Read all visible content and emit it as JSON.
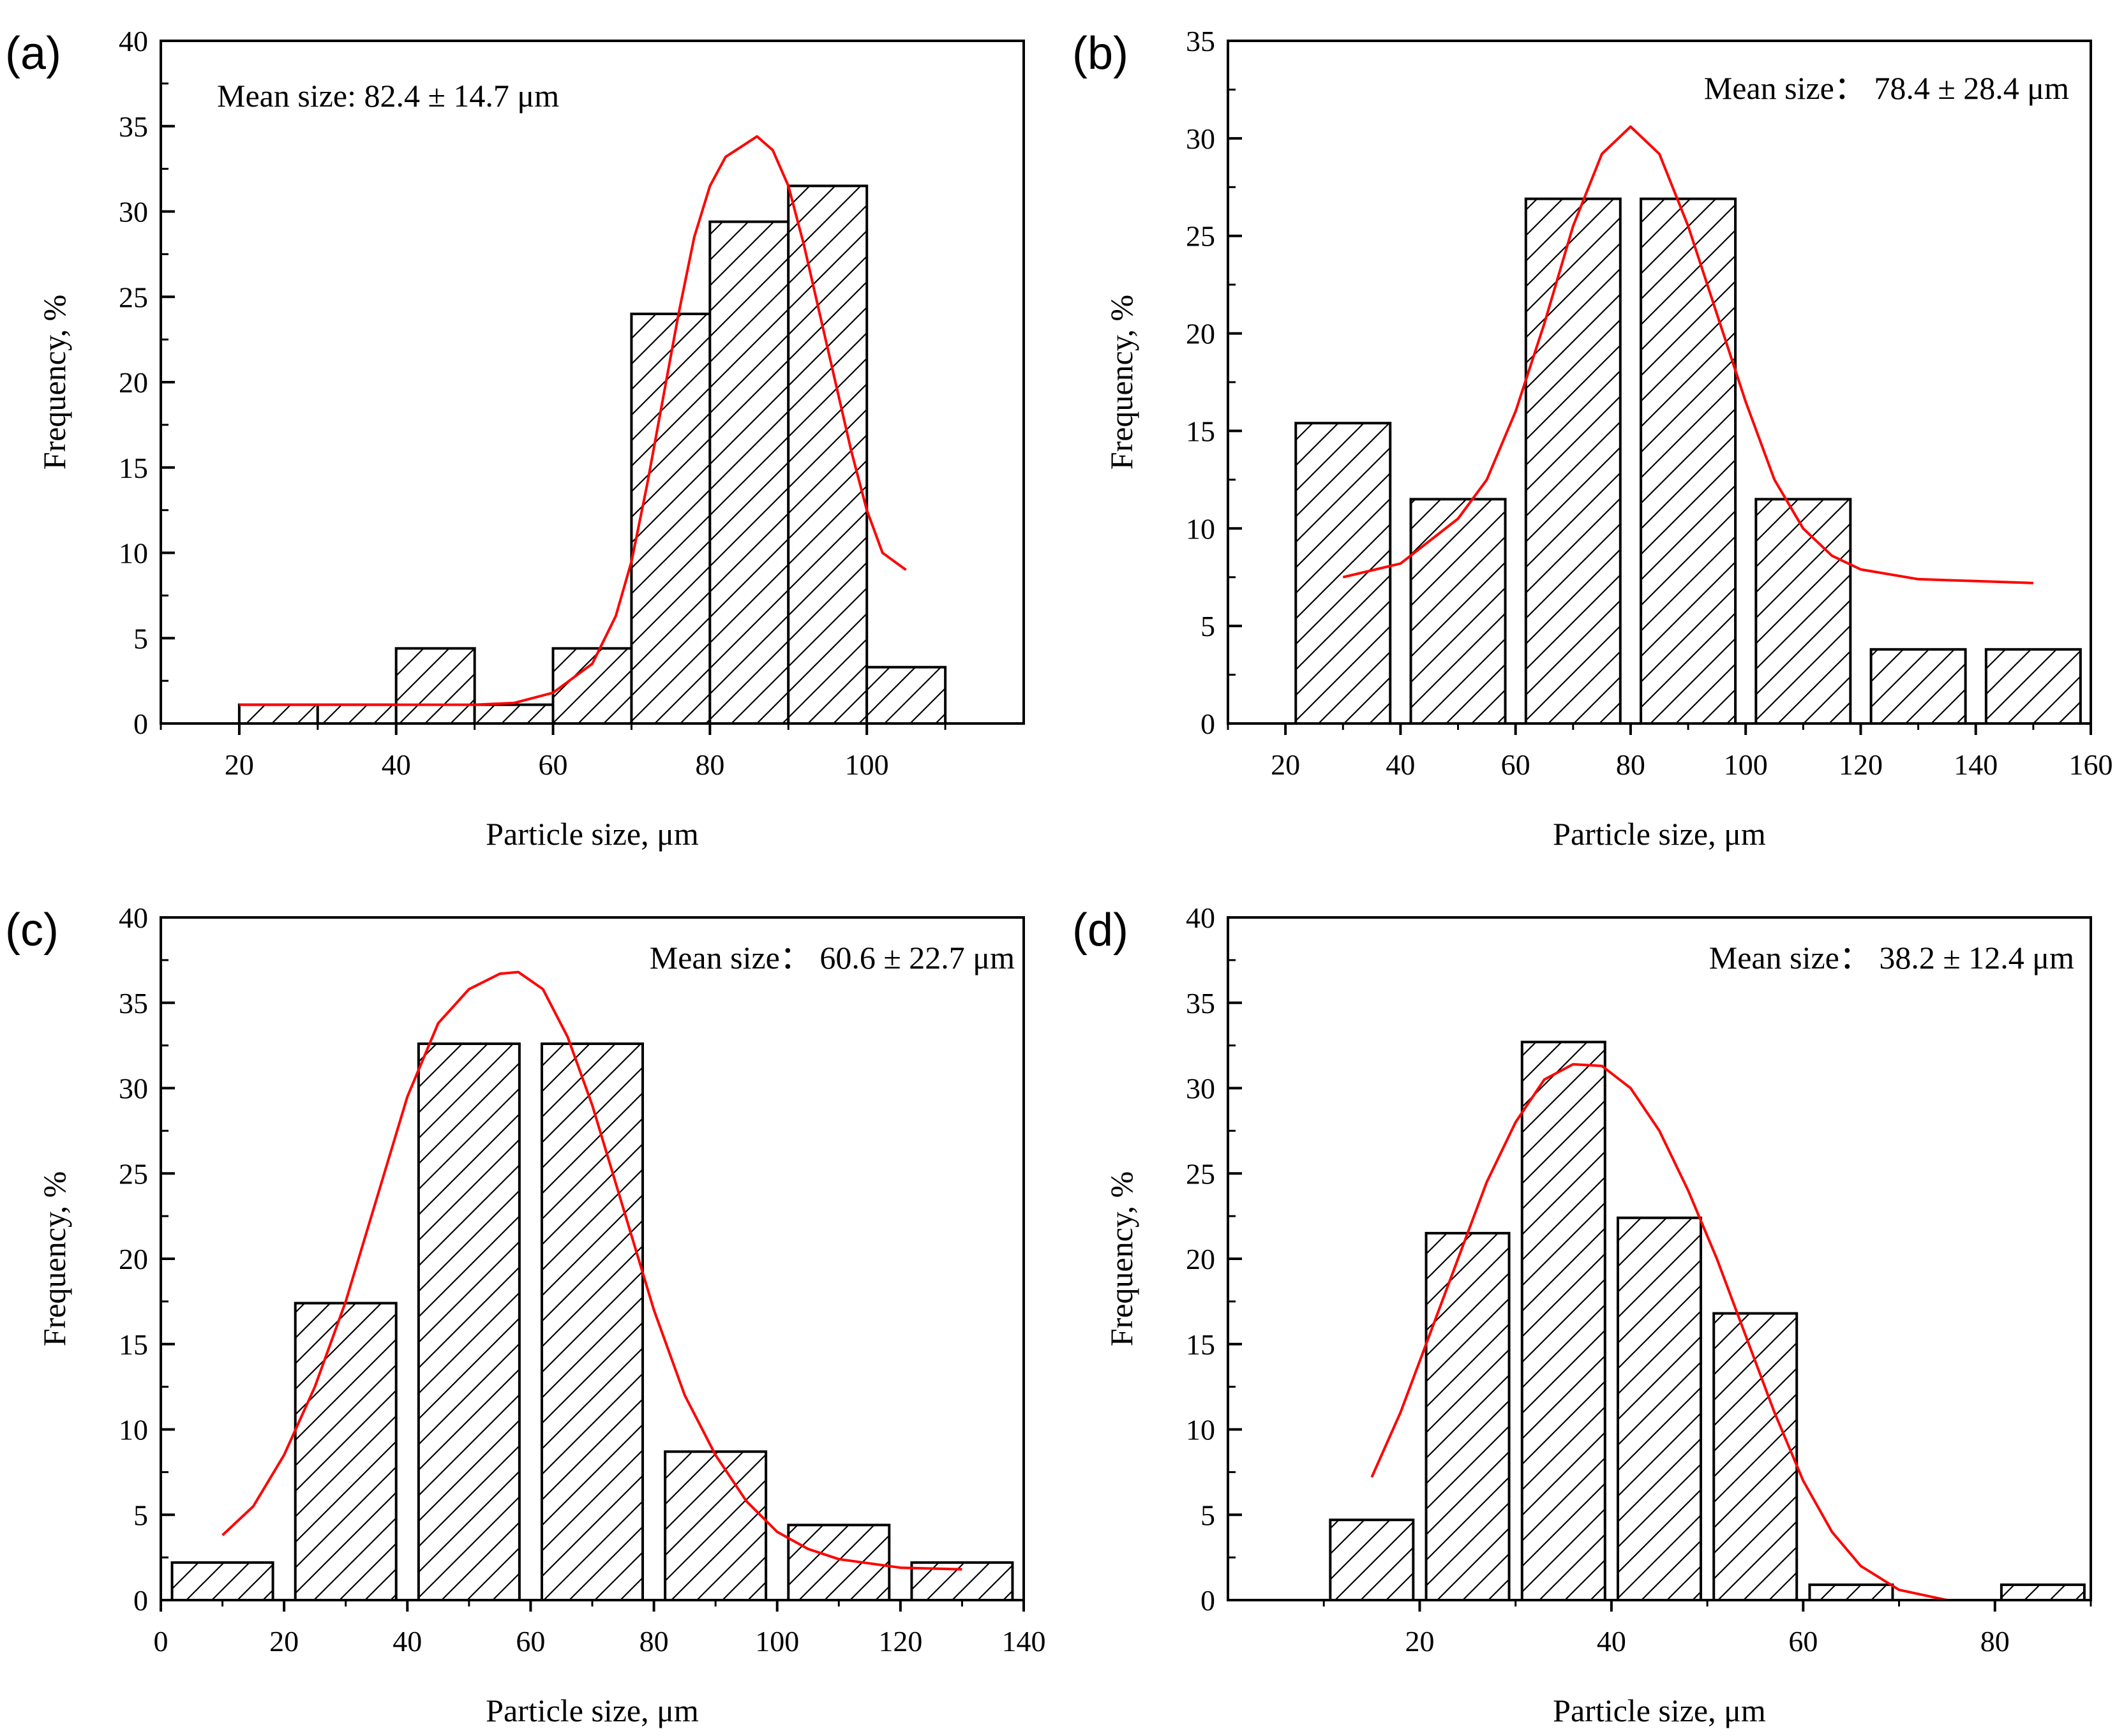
{
  "chart_data": [
    {
      "type": "bar",
      "panel_label": "(a)",
      "annotation": "Mean size:  82.4 ± 14.7 μm",
      "xlabel": "Particle size, μm",
      "ylabel": "Frequency, %",
      "xlim": [
        10,
        120
      ],
      "ylim": [
        0,
        40
      ],
      "xticks": [
        20,
        40,
        60,
        80,
        100
      ],
      "yticks": [
        0,
        5,
        10,
        15,
        20,
        25,
        30,
        35,
        40
      ],
      "bins": [
        {
          "x": 25,
          "y": 1.1
        },
        {
          "x": 35,
          "y": 1.1
        },
        {
          "x": 45,
          "y": 4.4
        },
        {
          "x": 55,
          "y": 1.1
        },
        {
          "x": 65,
          "y": 4.4
        },
        {
          "x": 75,
          "y": 24.0
        },
        {
          "x": 85,
          "y": 29.4
        },
        {
          "x": 95,
          "y": 31.5
        },
        {
          "x": 105,
          "y": 3.3
        }
      ],
      "fit_color": "#ff0000",
      "fit": [
        [
          20,
          1.1
        ],
        [
          30,
          1.1
        ],
        [
          40,
          1.1
        ],
        [
          50,
          1.1
        ],
        [
          55,
          1.2
        ],
        [
          60,
          1.8
        ],
        [
          65,
          3.5
        ],
        [
          68,
          6.3
        ],
        [
          70,
          9.5
        ],
        [
          72,
          14
        ],
        [
          74,
          19
        ],
        [
          76,
          24
        ],
        [
          78,
          28.5
        ],
        [
          80,
          31.5
        ],
        [
          82,
          33.2
        ],
        [
          84,
          33.8
        ],
        [
          86,
          34.4
        ],
        [
          88,
          33.6
        ],
        [
          90,
          31.5
        ],
        [
          92,
          28
        ],
        [
          94,
          24
        ],
        [
          96,
          20
        ],
        [
          98,
          16
        ],
        [
          100,
          12.5
        ],
        [
          102,
          10
        ],
        [
          105,
          9
        ]
      ]
    },
    {
      "type": "bar",
      "panel_label": "(b)",
      "annotation": "Mean size：  78.4 ± 28.4 μm",
      "xlabel": "Particle size, μm",
      "ylabel": "Frequency, %",
      "xlim": [
        10,
        160
      ],
      "ylim": [
        0,
        35
      ],
      "xticks": [
        20,
        40,
        60,
        80,
        100,
        120,
        140,
        160
      ],
      "yticks": [
        0,
        5,
        10,
        15,
        20,
        25,
        30,
        35
      ],
      "bins": [
        {
          "x": 30,
          "y": 15.4
        },
        {
          "x": 50,
          "y": 11.5
        },
        {
          "x": 70,
          "y": 26.9
        },
        {
          "x": 90,
          "y": 26.9
        },
        {
          "x": 110,
          "y": 11.5
        },
        {
          "x": 130,
          "y": 3.8
        },
        {
          "x": 150,
          "y": 3.8
        }
      ],
      "fit_color": "#ff0000",
      "fit": [
        [
          30,
          7.5
        ],
        [
          40,
          8.2
        ],
        [
          50,
          10.5
        ],
        [
          55,
          12.5
        ],
        [
          60,
          16
        ],
        [
          65,
          20.5
        ],
        [
          70,
          25.5
        ],
        [
          75,
          29.2
        ],
        [
          80,
          30.6
        ],
        [
          85,
          29.2
        ],
        [
          90,
          25.5
        ],
        [
          95,
          21
        ],
        [
          100,
          16.5
        ],
        [
          105,
          12.5
        ],
        [
          110,
          10
        ],
        [
          115,
          8.6
        ],
        [
          120,
          7.9
        ],
        [
          130,
          7.4
        ],
        [
          140,
          7.3
        ],
        [
          150,
          7.2
        ]
      ]
    },
    {
      "type": "bar",
      "panel_label": "(c)",
      "annotation": "Mean size：  60.6 ± 22.7 μm",
      "xlabel": "Particle size, μm",
      "ylabel": "Frequency, %",
      "xlim": [
        0,
        140
      ],
      "ylim": [
        0,
        40
      ],
      "xticks": [
        0,
        20,
        40,
        60,
        80,
        100,
        120,
        140
      ],
      "yticks": [
        0,
        5,
        10,
        15,
        20,
        25,
        30,
        35,
        40
      ],
      "bins": [
        {
          "x": 10,
          "y": 2.2
        },
        {
          "x": 30,
          "y": 17.4
        },
        {
          "x": 50,
          "y": 32.6
        },
        {
          "x": 70,
          "y": 32.6
        },
        {
          "x": 90,
          "y": 8.7
        },
        {
          "x": 110,
          "y": 4.4
        },
        {
          "x": 130,
          "y": 2.2
        }
      ],
      "fit_color": "#ff0000",
      "fit": [
        [
          10,
          3.8
        ],
        [
          15,
          5.5
        ],
        [
          20,
          8.5
        ],
        [
          25,
          12.5
        ],
        [
          30,
          17.5
        ],
        [
          35,
          23.5
        ],
        [
          40,
          29.5
        ],
        [
          45,
          33.8
        ],
        [
          50,
          35.8
        ],
        [
          55,
          36.7
        ],
        [
          58,
          36.8
        ],
        [
          62,
          35.8
        ],
        [
          66,
          33
        ],
        [
          70,
          29
        ],
        [
          75,
          23
        ],
        [
          80,
          17
        ],
        [
          85,
          12
        ],
        [
          90,
          8.5
        ],
        [
          95,
          5.8
        ],
        [
          100,
          4
        ],
        [
          105,
          3
        ],
        [
          110,
          2.4
        ],
        [
          120,
          1.9
        ],
        [
          130,
          1.8
        ]
      ]
    },
    {
      "type": "bar",
      "panel_label": "(d)",
      "annotation": "Mean size：  38.2 ± 12.4 μm",
      "xlabel": "Particle size, μm",
      "ylabel": "Frequency, %",
      "xlim": [
        0,
        90
      ],
      "ylim": [
        0,
        40
      ],
      "xticks": [
        20,
        40,
        60,
        80
      ],
      "yticks": [
        0,
        5,
        10,
        15,
        20,
        25,
        30,
        35,
        40
      ],
      "bins": [
        {
          "x": 15,
          "y": 4.7
        },
        {
          "x": 25,
          "y": 21.5
        },
        {
          "x": 35,
          "y": 32.7
        },
        {
          "x": 45,
          "y": 22.4
        },
        {
          "x": 55,
          "y": 16.8
        },
        {
          "x": 65,
          "y": 0.9
        },
        {
          "x": 85,
          "y": 0.9
        }
      ],
      "fit_color": "#ff0000",
      "fit": [
        [
          15,
          7.2
        ],
        [
          18,
          11
        ],
        [
          21,
          15.5
        ],
        [
          24,
          20
        ],
        [
          27,
          24.5
        ],
        [
          30,
          28
        ],
        [
          33,
          30.5
        ],
        [
          36,
          31.4
        ],
        [
          39,
          31.3
        ],
        [
          42,
          30
        ],
        [
          45,
          27.5
        ],
        [
          48,
          24
        ],
        [
          51,
          20
        ],
        [
          54,
          15.5
        ],
        [
          57,
          11
        ],
        [
          60,
          7
        ],
        [
          63,
          4
        ],
        [
          66,
          2
        ],
        [
          70,
          0.6
        ],
        [
          75,
          0
        ]
      ]
    }
  ]
}
